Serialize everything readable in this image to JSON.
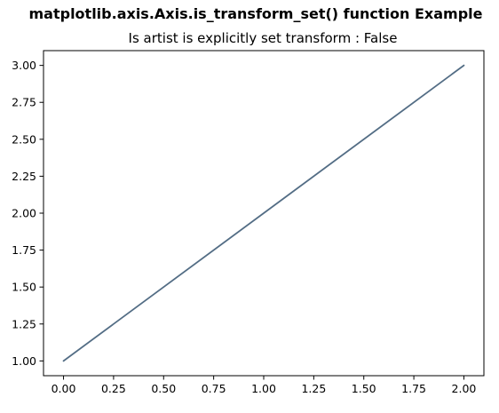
{
  "figure": {
    "suptitle": "matplotlib.axis.Axis.is_transform_set() function Example",
    "title": "Is artist is explicitly set transform : False"
  },
  "chart_data": {
    "type": "line",
    "title": "Is artist is explicitly set transform : False",
    "suptitle": "matplotlib.axis.Axis.is_transform_set() function Example",
    "xlabel": "",
    "ylabel": "",
    "x": [
      0,
      1,
      2
    ],
    "series": [
      {
        "values": [
          1,
          2,
          3
        ],
        "color": "#536d85"
      }
    ],
    "xlim": [
      -0.1,
      2.1
    ],
    "ylim": [
      0.9,
      3.1
    ],
    "xticks": [
      0.0,
      0.25,
      0.5,
      0.75,
      1.0,
      1.25,
      1.5,
      1.75,
      2.0
    ],
    "xtick_labels": [
      "0.00",
      "0.25",
      "0.50",
      "0.75",
      "1.00",
      "1.25",
      "1.50",
      "1.75",
      "2.00"
    ],
    "yticks": [
      1.0,
      1.25,
      1.5,
      1.75,
      2.0,
      2.25,
      2.5,
      2.75,
      3.0
    ],
    "ytick_labels": [
      "1.00",
      "1.25",
      "1.50",
      "1.75",
      "2.00",
      "2.25",
      "2.50",
      "2.75",
      "3.00"
    ],
    "grid": false,
    "legend": "none"
  }
}
